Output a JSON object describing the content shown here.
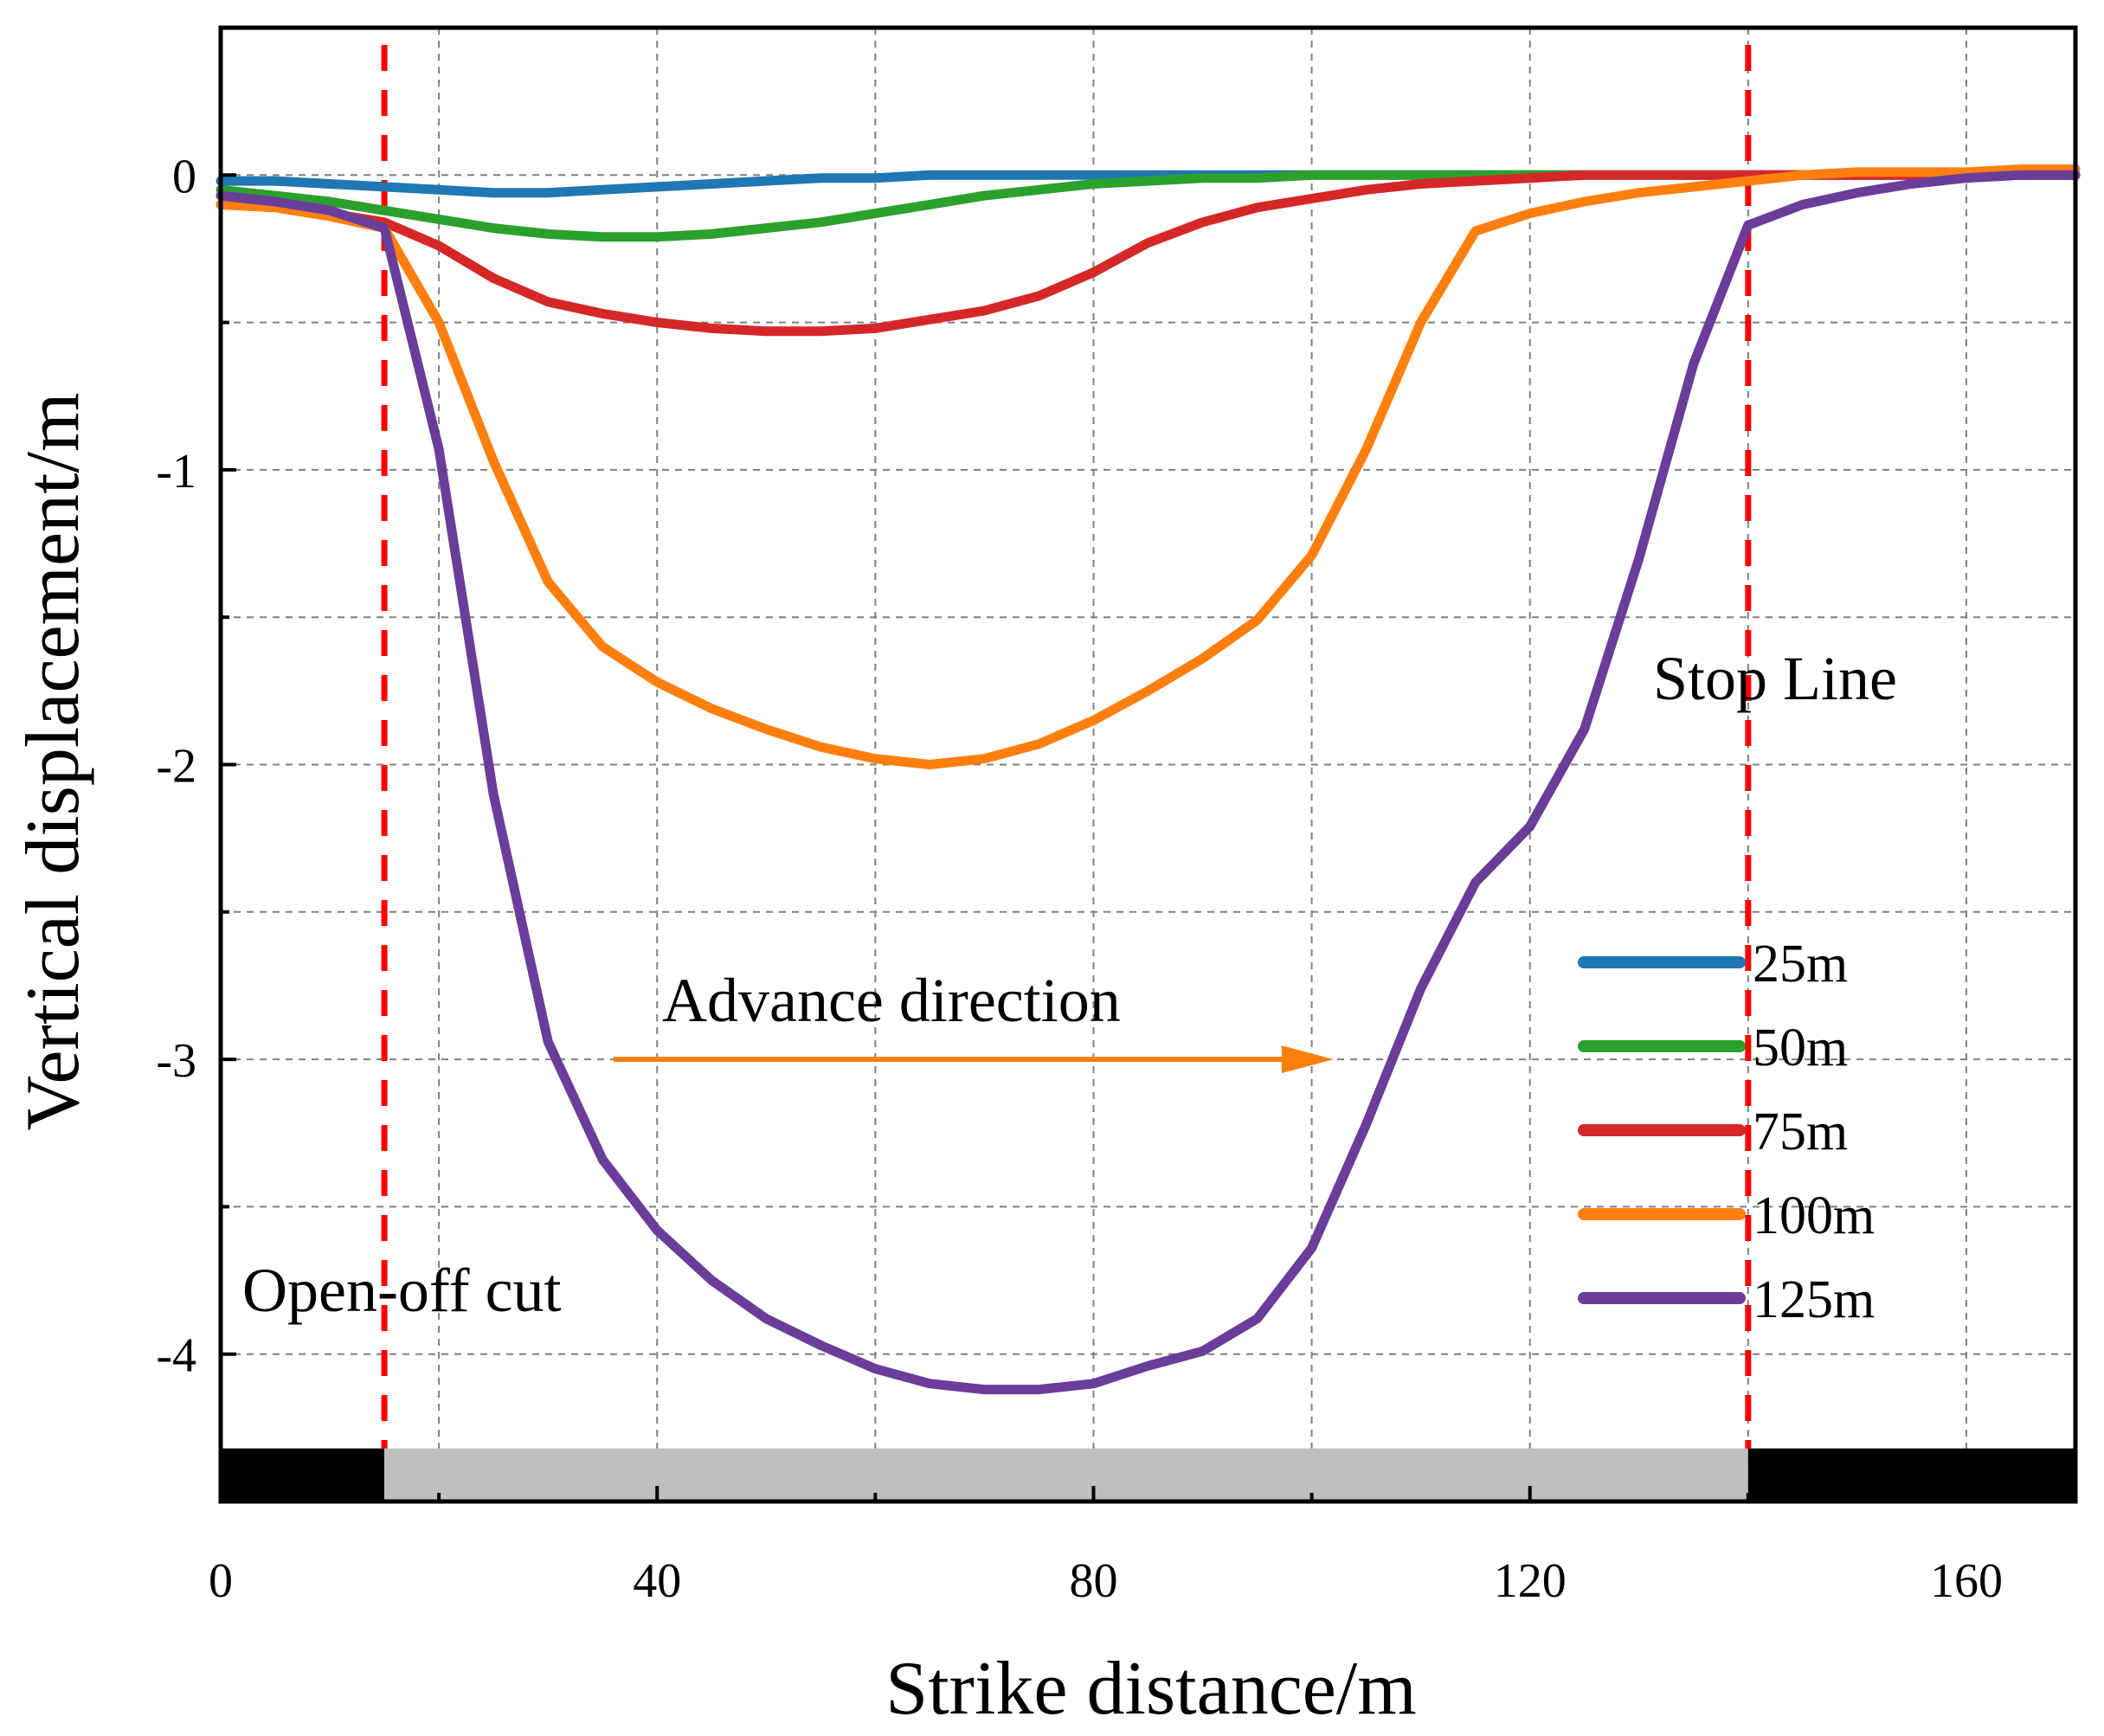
{
  "chart_data": {
    "type": "line",
    "title": "",
    "xlabel": "Strike distance/m",
    "ylabel": "Vertical displacement/m",
    "xlim": [
      0,
      170
    ],
    "ylim": [
      -4.5,
      0.5
    ],
    "xticks": [
      0,
      40,
      80,
      120,
      160
    ],
    "xtick_labels": [
      "0",
      "40",
      "80",
      "120",
      "160"
    ],
    "yticks": [
      0,
      -1,
      -2,
      -3,
      -4
    ],
    "ytick_labels": [
      "0",
      "-1",
      "-2",
      "-3",
      "-4"
    ],
    "grid": true,
    "legend_position": "lower-right",
    "series": [
      {
        "name": "25m",
        "color": "#1f77b4",
        "x": [
          0,
          5,
          10,
          15,
          20,
          25,
          30,
          35,
          40,
          45,
          50,
          55,
          60,
          65,
          70,
          75,
          80,
          85,
          90,
          95,
          100,
          105,
          110,
          115,
          120,
          125,
          130,
          135,
          140,
          145,
          150,
          155,
          160,
          165,
          170
        ],
        "y": [
          -0.02,
          -0.02,
          -0.03,
          -0.04,
          -0.05,
          -0.06,
          -0.06,
          -0.05,
          -0.04,
          -0.03,
          -0.02,
          -0.01,
          -0.01,
          0,
          0,
          0,
          0,
          0,
          0,
          0,
          0,
          0,
          0,
          0,
          0,
          0,
          0,
          0,
          0,
          0,
          0,
          0,
          0,
          0,
          0
        ]
      },
      {
        "name": "50m",
        "color": "#2ca02c",
        "x": [
          0,
          5,
          10,
          15,
          20,
          25,
          30,
          35,
          40,
          45,
          50,
          55,
          60,
          65,
          70,
          75,
          80,
          85,
          90,
          95,
          100,
          105,
          110,
          115,
          120,
          125,
          130,
          135,
          140,
          145,
          150,
          155,
          160,
          165,
          170
        ],
        "y": [
          -0.05,
          -0.07,
          -0.09,
          -0.12,
          -0.15,
          -0.18,
          -0.2,
          -0.21,
          -0.21,
          -0.2,
          -0.18,
          -0.16,
          -0.13,
          -0.1,
          -0.07,
          -0.05,
          -0.03,
          -0.02,
          -0.01,
          -0.01,
          0,
          0,
          0,
          0,
          0,
          0,
          0,
          0,
          0,
          0,
          0,
          0,
          0,
          0,
          0
        ]
      },
      {
        "name": "75m",
        "color": "#d62728",
        "x": [
          0,
          5,
          10,
          15,
          20,
          25,
          30,
          35,
          40,
          45,
          50,
          55,
          60,
          65,
          70,
          75,
          80,
          85,
          90,
          95,
          100,
          105,
          110,
          115,
          120,
          125,
          130,
          135,
          140,
          145,
          150,
          155,
          160,
          165,
          170
        ],
        "y": [
          -0.1,
          -0.11,
          -0.13,
          -0.16,
          -0.24,
          -0.35,
          -0.43,
          -0.47,
          -0.5,
          -0.52,
          -0.53,
          -0.53,
          -0.52,
          -0.49,
          -0.46,
          -0.41,
          -0.33,
          -0.23,
          -0.16,
          -0.11,
          -0.08,
          -0.05,
          -0.03,
          -0.02,
          -0.01,
          0,
          0,
          0,
          0,
          0,
          0,
          0,
          0,
          0,
          0
        ]
      },
      {
        "name": "100m",
        "color": "#ff7f0e",
        "x": [
          0,
          5,
          10,
          15,
          20,
          25,
          30,
          35,
          40,
          45,
          50,
          55,
          60,
          65,
          70,
          75,
          80,
          85,
          90,
          95,
          100,
          105,
          110,
          115,
          120,
          125,
          130,
          135,
          140,
          145,
          150,
          155,
          160,
          165,
          170
        ],
        "y": [
          -0.1,
          -0.11,
          -0.14,
          -0.18,
          -0.5,
          -0.97,
          -1.38,
          -1.6,
          -1.72,
          -1.81,
          -1.88,
          -1.94,
          -1.98,
          -2.0,
          -1.98,
          -1.93,
          -1.85,
          -1.75,
          -1.64,
          -1.51,
          -1.29,
          -0.93,
          -0.5,
          -0.19,
          -0.13,
          -0.09,
          -0.06,
          -0.04,
          -0.02,
          0,
          0.01,
          0.01,
          0.01,
          0.02,
          0.02
        ]
      },
      {
        "name": "125m",
        "color": "#6a3d9a",
        "x": [
          0,
          5,
          10,
          15,
          20,
          25,
          30,
          35,
          40,
          45,
          50,
          55,
          60,
          65,
          70,
          75,
          80,
          85,
          90,
          95,
          100,
          105,
          110,
          115,
          120,
          125,
          130,
          135,
          140,
          145,
          150,
          155,
          160,
          165,
          170
        ],
        "y": [
          -0.07,
          -0.09,
          -0.12,
          -0.18,
          -0.93,
          -2.1,
          -2.94,
          -3.34,
          -3.58,
          -3.75,
          -3.88,
          -3.97,
          -4.05,
          -4.1,
          -4.12,
          -4.12,
          -4.1,
          -4.04,
          -3.99,
          -3.88,
          -3.64,
          -3.22,
          -2.76,
          -2.4,
          -2.21,
          -1.88,
          -1.3,
          -0.64,
          -0.17,
          -0.1,
          -0.06,
          -0.03,
          -0.01,
          0,
          0
        ]
      }
    ],
    "vertical_lines": [
      {
        "x": 15,
        "label": "Open-off cut",
        "color": "#ff0000"
      },
      {
        "x": 140,
        "label": "Stop Line",
        "color": "#ff0000"
      }
    ],
    "arrow": {
      "label": "Advance direction",
      "from_x": 36,
      "to_x": 102,
      "y": -3.0,
      "color": "#ff7f0e"
    },
    "bottom_bar": {
      "black_start": 0,
      "gray_start": 15,
      "gray_end": 140,
      "black_end": 170
    }
  }
}
